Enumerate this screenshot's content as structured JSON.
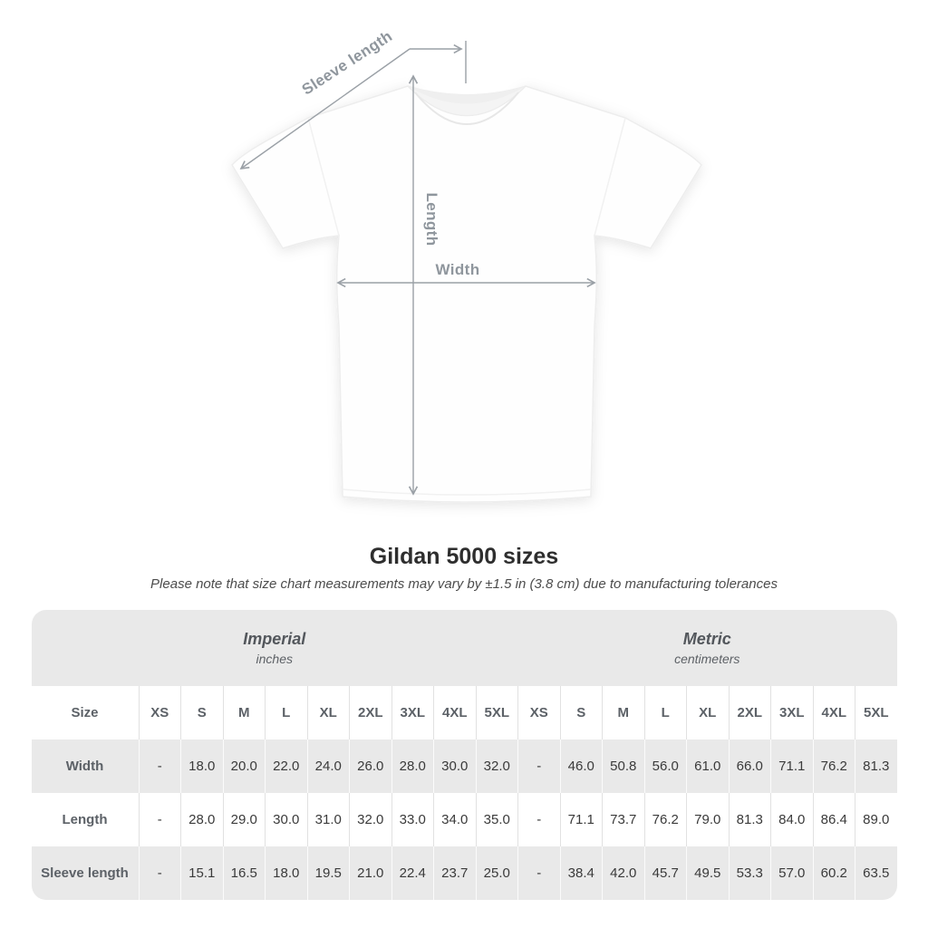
{
  "diagram": {
    "labels": {
      "sleeve_length": "Sleeve length",
      "length": "Length",
      "width": "Width"
    }
  },
  "chart_data": {
    "type": "table",
    "title": "Gildan 5000 sizes",
    "subtitle": "Please note that size chart measurements may vary by ±1.5 in (3.8 cm) due to manufacturing tolerances",
    "unit_groups": [
      {
        "name": "Imperial",
        "unit": "inches"
      },
      {
        "name": "Metric",
        "unit": "centimeters"
      }
    ],
    "size_header": "Size",
    "sizes": [
      "XS",
      "S",
      "M",
      "L",
      "XL",
      "2XL",
      "3XL",
      "4XL",
      "5XL"
    ],
    "rows": [
      {
        "label": "Width",
        "imperial": [
          "-",
          "18.0",
          "20.0",
          "22.0",
          "24.0",
          "26.0",
          "28.0",
          "30.0",
          "32.0"
        ],
        "metric": [
          "-",
          "46.0",
          "50.8",
          "56.0",
          "61.0",
          "66.0",
          "71.1",
          "76.2",
          "81.3"
        ]
      },
      {
        "label": "Length",
        "imperial": [
          "-",
          "28.0",
          "29.0",
          "30.0",
          "31.0",
          "32.0",
          "33.0",
          "34.0",
          "35.0"
        ],
        "metric": [
          "-",
          "71.1",
          "73.7",
          "76.2",
          "79.0",
          "81.3",
          "84.0",
          "86.4",
          "89.0"
        ]
      },
      {
        "label": "Sleeve length",
        "imperial": [
          "-",
          "15.1",
          "16.5",
          "18.0",
          "19.5",
          "21.0",
          "22.4",
          "23.7",
          "25.0"
        ],
        "metric": [
          "-",
          "38.4",
          "42.0",
          "45.7",
          "49.5",
          "53.3",
          "57.0",
          "60.2",
          "63.5"
        ]
      }
    ]
  },
  "colors": {
    "table_band": "#e9e9e9",
    "row_alt": "#e9e9e9",
    "divider_on_white": "#e1e1e1",
    "divider_on_gray": "#fbfbfb",
    "measure_line": "#9aa0a6",
    "measure_label": "#8f969d",
    "value_text": "#3a3a3a",
    "header_text": "#5c6167",
    "title_text": "#2e2e2e"
  }
}
